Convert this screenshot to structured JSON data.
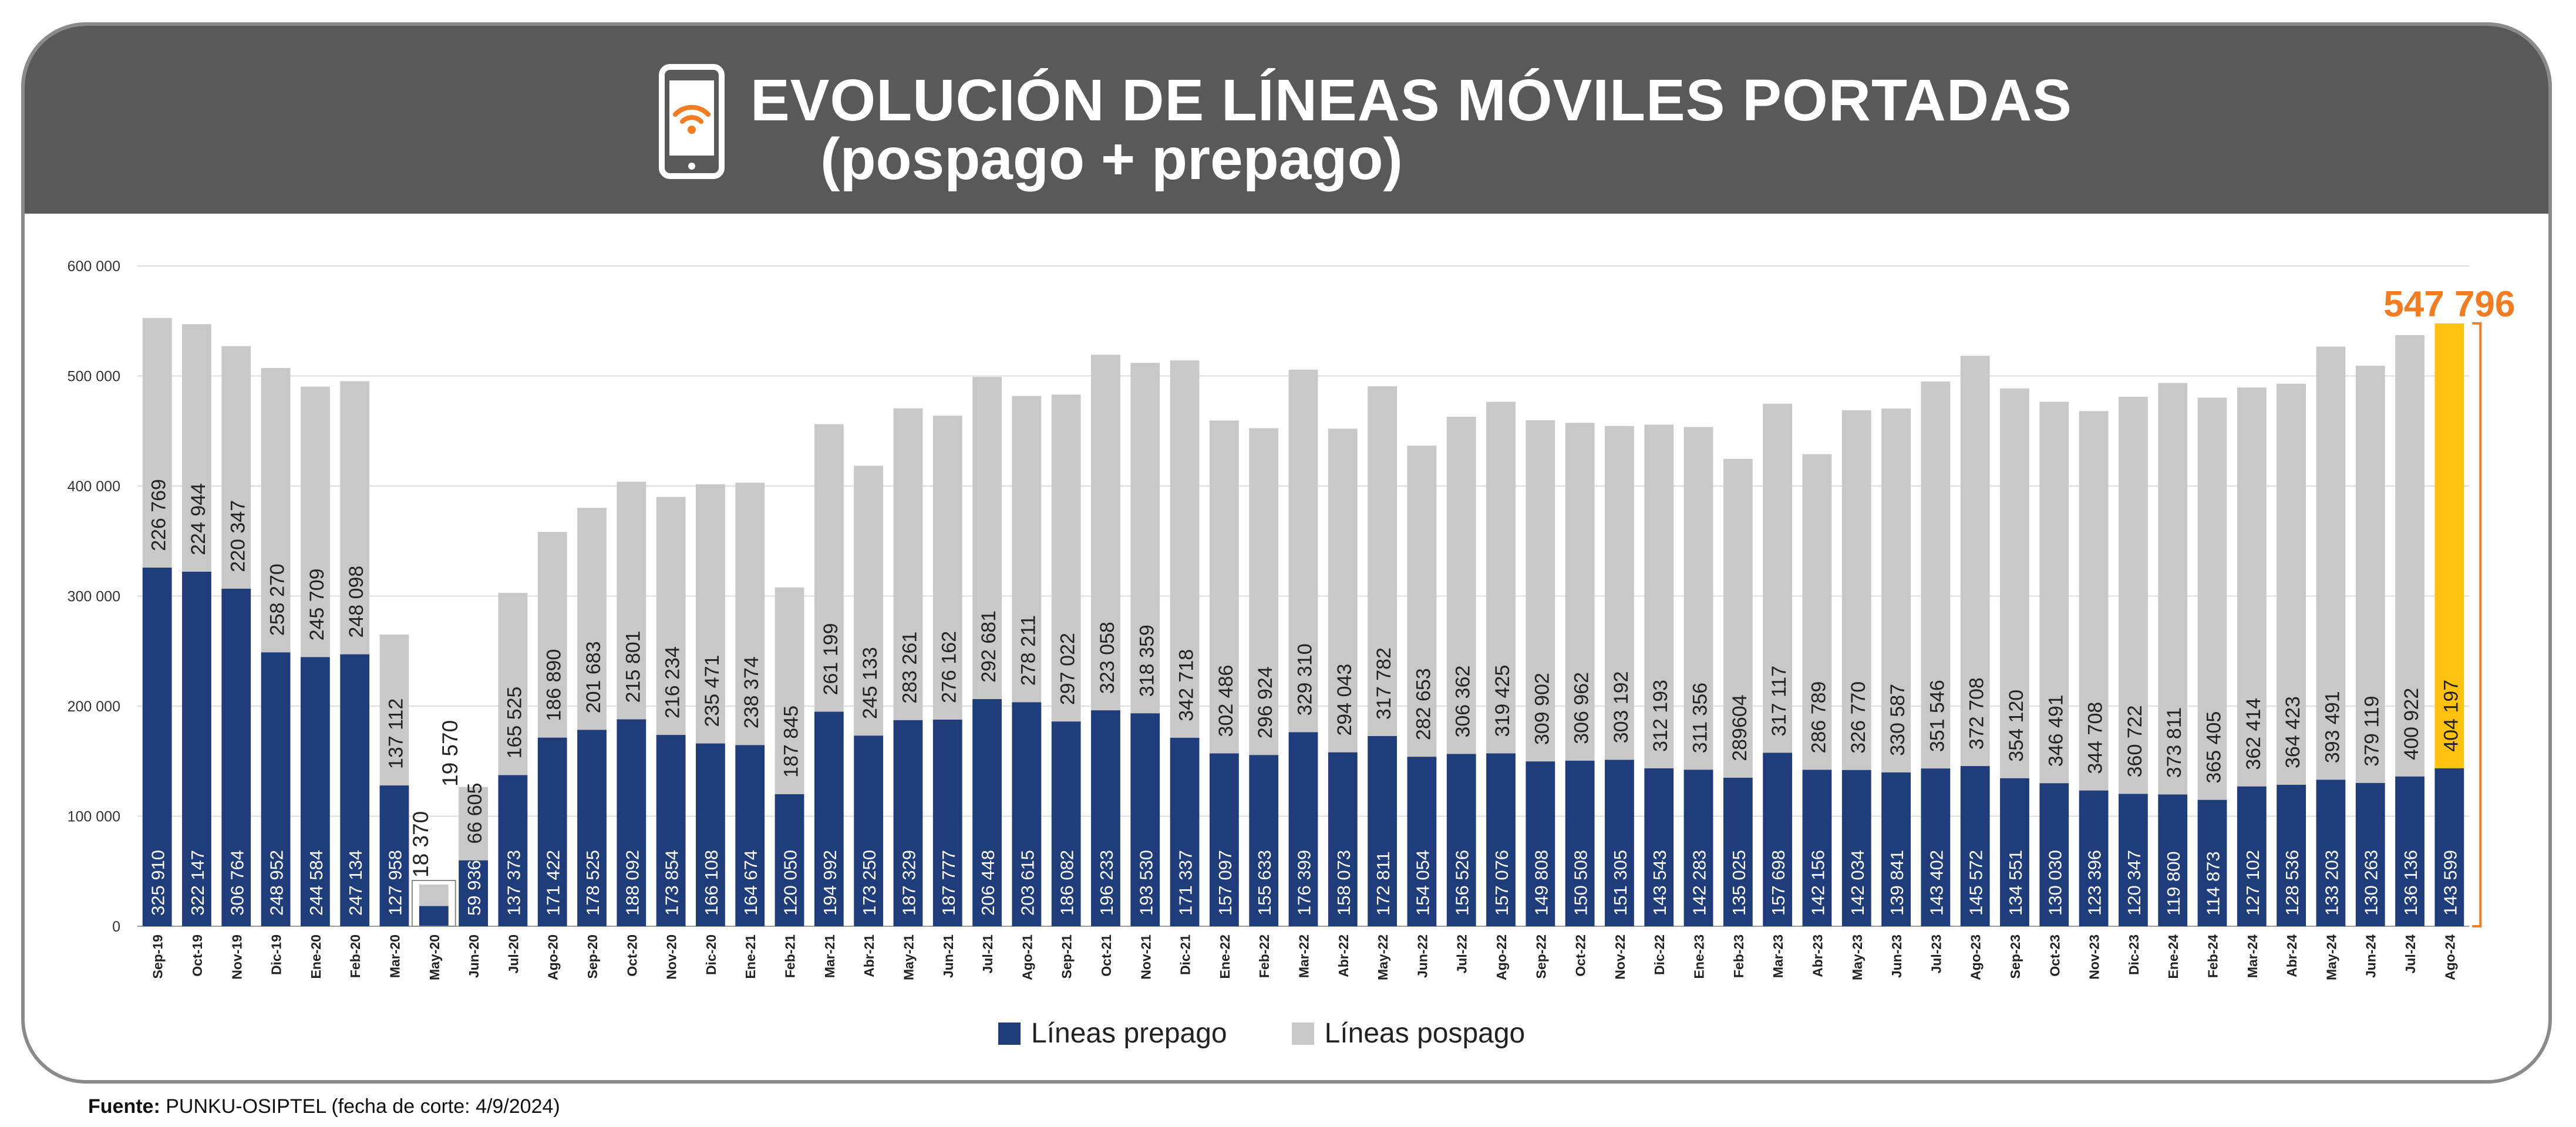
{
  "header": {
    "title_line1": "EVOLUCIÓN DE LÍNEAS MÓVILES PORTADAS",
    "title_line2": "(pospago + prepago)"
  },
  "icons": {
    "header_icon": "smartphone-wifi-icon"
  },
  "colors": {
    "header_bg": "#595959",
    "prepago": "#1f3d7a",
    "pospago": "#c8c8c8",
    "highlight": "#ffc20e",
    "highlight_total": "#f47b20",
    "grid": "#dcdcdc",
    "card_border": "#8a8a8a"
  },
  "legend": {
    "prepago_label": "Líneas prepago",
    "pospago_label": "Líneas pospago"
  },
  "footer": {
    "label": "Fuente:",
    "text": "PUNKU-OSIPTEL (fecha de corte: 4/9/2024)"
  },
  "chart_data": {
    "type": "bar",
    "stacked": true,
    "title": "EVOLUCIÓN DE LÍNEAS MÓVILES PORTADAS (pospago + prepago)",
    "ylim": [
      0,
      600000
    ],
    "yticks": [
      0,
      100000,
      200000,
      300000,
      400000,
      500000,
      600000
    ],
    "ytick_labels": [
      "0",
      "100 000",
      "200 000",
      "300 000",
      "400 000",
      "500 000",
      "600 000"
    ],
    "categories": [
      "Sep-19",
      "Oct-19",
      "Nov-19",
      "Dic-19",
      "Ene-20",
      "Feb-20",
      "Mar-20",
      "May-20",
      "Jun-20",
      "Jul-20",
      "Ago-20",
      "Sep-20",
      "Oct-20",
      "Nov-20",
      "Dic-20",
      "Ene-21",
      "Feb-21",
      "Mar-21",
      "Abr-21",
      "May-21",
      "Jun-21",
      "Jul-21",
      "Ago-21",
      "Sep-21",
      "Oct-21",
      "Nov-21",
      "Dic-21",
      "Ene-22",
      "Feb-22",
      "Mar-22",
      "Abr-22",
      "May-22",
      "Jun-22",
      "Jul-22",
      "Ago-22",
      "Sep-22",
      "Oct-22",
      "Nov-22",
      "Dic-22",
      "Ene-23",
      "Feb-23",
      "Mar-23",
      "Abr-23",
      "May-23",
      "Jun-23",
      "Jul-23",
      "Ago-23",
      "Sep-23",
      "Oct-23",
      "Nov-23",
      "Dic-23",
      "Ene-24",
      "Feb-24",
      "Mar-24",
      "Abr-24",
      "May-24",
      "Jun-24",
      "Jul-24",
      "Ago-24"
    ],
    "series": [
      {
        "name": "Líneas prepago",
        "values": [
          325910,
          322147,
          306764,
          248952,
          244584,
          247134,
          127958,
          18370,
          59936,
          137373,
          171422,
          178525,
          188092,
          173854,
          166108,
          164674,
          120050,
          194992,
          173250,
          187329,
          187777,
          206448,
          203615,
          186082,
          196233,
          193530,
          171337,
          157097,
          155633,
          176399,
          158073,
          172811,
          154054,
          156526,
          157076,
          149808,
          150508,
          151305,
          143543,
          142283,
          135025,
          157698,
          142156,
          142034,
          139841,
          143402,
          145572,
          134551,
          130030,
          123396,
          120347,
          119800,
          114873,
          127102,
          128536,
          133203,
          130263,
          136136,
          143599
        ],
        "labels": [
          "325 910",
          "322 147",
          "306 764",
          "248 952",
          "244 584",
          "247 134",
          "127 958",
          "18 370",
          "59 936",
          "137 373",
          "171 422",
          "178 525",
          "188 092",
          "173 854",
          "166 108",
          "164 674",
          "120 050",
          "194 992",
          "173 250",
          "187 329",
          "187 777",
          "206 448",
          "203 615",
          "186 082",
          "196 233",
          "193 530",
          "171 337",
          "157 097",
          "155 633",
          "176 399",
          "158 073",
          "172 811",
          "154 054",
          "156 526",
          "157 076",
          "149 808",
          "150 508",
          "151 305",
          "143 543",
          "142 283",
          "135 025",
          "157 698",
          "142 156",
          "142 034",
          "139 841",
          "143 402",
          "145 572",
          "134 551",
          "130 030",
          "123 396",
          "120 347",
          "119 800",
          "114 873",
          "127 102",
          "128 536",
          "133 203",
          "130 263",
          "136 136",
          "143 599"
        ]
      },
      {
        "name": "Líneas pospago",
        "values": [
          226769,
          224944,
          220347,
          258270,
          245709,
          248098,
          137112,
          19570,
          66605,
          165525,
          186890,
          201683,
          215801,
          216234,
          235471,
          238374,
          187845,
          261199,
          245133,
          283261,
          276162,
          292681,
          278211,
          297022,
          323058,
          318359,
          342718,
          302486,
          296924,
          329310,
          294043,
          317782,
          282653,
          306362,
          319425,
          309902,
          306962,
          303192,
          312193,
          311356,
          289604,
          317117,
          286789,
          326770,
          330587,
          351546,
          372708,
          354120,
          346491,
          344708,
          360722,
          373811,
          365405,
          362414,
          364423,
          393491,
          379119,
          400922,
          404197
        ],
        "labels": [
          "226 769",
          "224 944",
          "220 347",
          "258 270",
          "245 709",
          "248 098",
          "137 112",
          "19 570",
          "66 605",
          "165 525",
          "186 890",
          "201 683",
          "215 801",
          "216 234",
          "235 471",
          "238 374",
          "187 845",
          "261 199",
          "245 133",
          "283 261",
          "276 162",
          "292 681",
          "278 211",
          "297 022",
          "323 058",
          "318 359",
          "342 718",
          "302 486",
          "296 924",
          "329 310",
          "294 043",
          "317 782",
          "282 653",
          "306 362",
          "319 425",
          "309 902",
          "306 962",
          "303 192",
          "312 193",
          "311 356",
          "289604",
          "317 117",
          "286 789",
          "326 770",
          "330 587",
          "351 546",
          "372 708",
          "354 120",
          "346 491",
          "344 708",
          "360 722",
          "373 811",
          "365 405",
          "362 414",
          "364 423",
          "393 491",
          "379 119",
          "400 922",
          "404 197"
        ]
      }
    ],
    "highlight": {
      "category": "Ago-24",
      "total": 547796,
      "total_label": "547 796"
    }
  }
}
